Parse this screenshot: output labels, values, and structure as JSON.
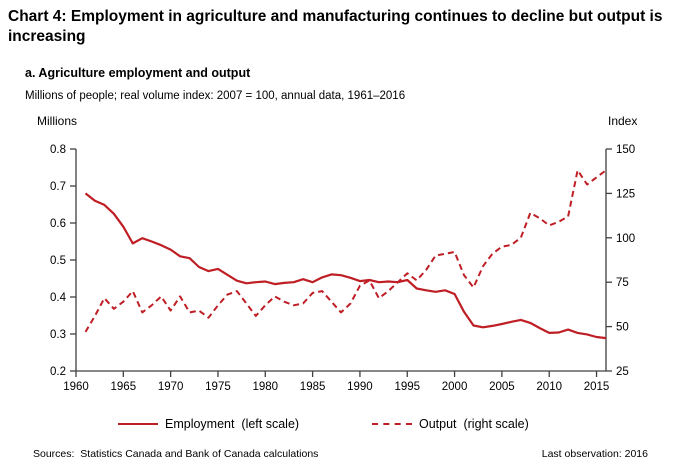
{
  "header": {
    "title": "Chart 4: Employment in agriculture and manufacturing continues to decline but output is increasing",
    "panel_label": "a. Agriculture employment and output",
    "subtitle": "Millions of people; real volume index: 2007 = 100, annual data, 1961–2016"
  },
  "axis_units": {
    "left": "Millions",
    "right": "Index"
  },
  "legend": {
    "employment_label": "Employment  (left scale)",
    "output_label": "Output  (right scale)"
  },
  "footer": {
    "sources": "Sources:  Statistics Canada and Bank of Canada calculations",
    "last_observation": "Last observation: 2016"
  },
  "colors": {
    "line_red": "#BE1E24",
    "axis": "#404040",
    "text": "#000000"
  },
  "chart_data": {
    "type": "line",
    "title": "a. Agriculture employment and output",
    "subtitle": "Millions of people; real volume index: 2007 = 100, annual data, 1961–2016",
    "grid": false,
    "legend_position": "bottom",
    "x": [
      1961,
      1962,
      1963,
      1964,
      1965,
      1966,
      1967,
      1968,
      1969,
      1970,
      1971,
      1972,
      1973,
      1974,
      1975,
      1976,
      1977,
      1978,
      1979,
      1980,
      1981,
      1982,
      1983,
      1984,
      1985,
      1986,
      1987,
      1988,
      1989,
      1990,
      1991,
      1992,
      1993,
      1994,
      1995,
      1996,
      1997,
      1998,
      1999,
      2000,
      2001,
      2002,
      2003,
      2004,
      2005,
      2006,
      2007,
      2008,
      2009,
      2010,
      2011,
      2012,
      2013,
      2014,
      2015,
      2016
    ],
    "series": [
      {
        "name": "Employment (left scale)",
        "axis": "left",
        "line_style": "solid",
        "color": "#BE1E24",
        "values": [
          0.68,
          0.66,
          0.649,
          0.625,
          0.59,
          0.545,
          0.559,
          0.55,
          0.54,
          0.528,
          0.51,
          0.505,
          0.481,
          0.47,
          0.476,
          0.46,
          0.444,
          0.437,
          0.44,
          0.442,
          0.435,
          0.438,
          0.44,
          0.448,
          0.44,
          0.453,
          0.461,
          0.459,
          0.452,
          0.443,
          0.446,
          0.44,
          0.442,
          0.44,
          0.446,
          0.423,
          0.418,
          0.414,
          0.418,
          0.408,
          0.36,
          0.323,
          0.318,
          0.322,
          0.327,
          0.333,
          0.338,
          0.33,
          0.316,
          0.303,
          0.304,
          0.312,
          0.303,
          0.299,
          0.292,
          0.289
        ]
      },
      {
        "name": "Output (right scale)",
        "axis": "right",
        "line_style": "dashed",
        "color": "#BE1E24",
        "values": [
          47,
          56,
          66,
          60,
          64,
          70,
          58,
          62,
          67,
          59,
          67,
          58,
          59,
          55,
          62,
          68,
          70,
          63,
          56,
          62,
          67,
          64,
          62,
          63,
          69,
          70,
          64,
          58,
          63,
          73,
          76,
          66,
          70,
          75,
          80,
          76,
          82,
          90,
          91,
          92,
          79,
          72,
          84,
          91,
          95,
          96,
          100,
          114,
          111,
          107,
          109,
          112,
          138,
          130,
          134,
          138
        ]
      }
    ],
    "left_axis": {
      "label": "Millions",
      "min": 0.2,
      "max": 0.8,
      "ticks": [
        0.2,
        0.3,
        0.4,
        0.5,
        0.6,
        0.7,
        0.8
      ],
      "tick_decimals": 1
    },
    "right_axis": {
      "label": "Index",
      "min": 25,
      "max": 150,
      "ticks": [
        25,
        50,
        75,
        100,
        125,
        150
      ],
      "tick_decimals": 0
    },
    "x_axis": {
      "min": 1960,
      "max": 2016,
      "ticks": [
        1960,
        1965,
        1970,
        1975,
        1980,
        1985,
        1990,
        1995,
        2000,
        2005,
        2010,
        2015
      ]
    }
  }
}
